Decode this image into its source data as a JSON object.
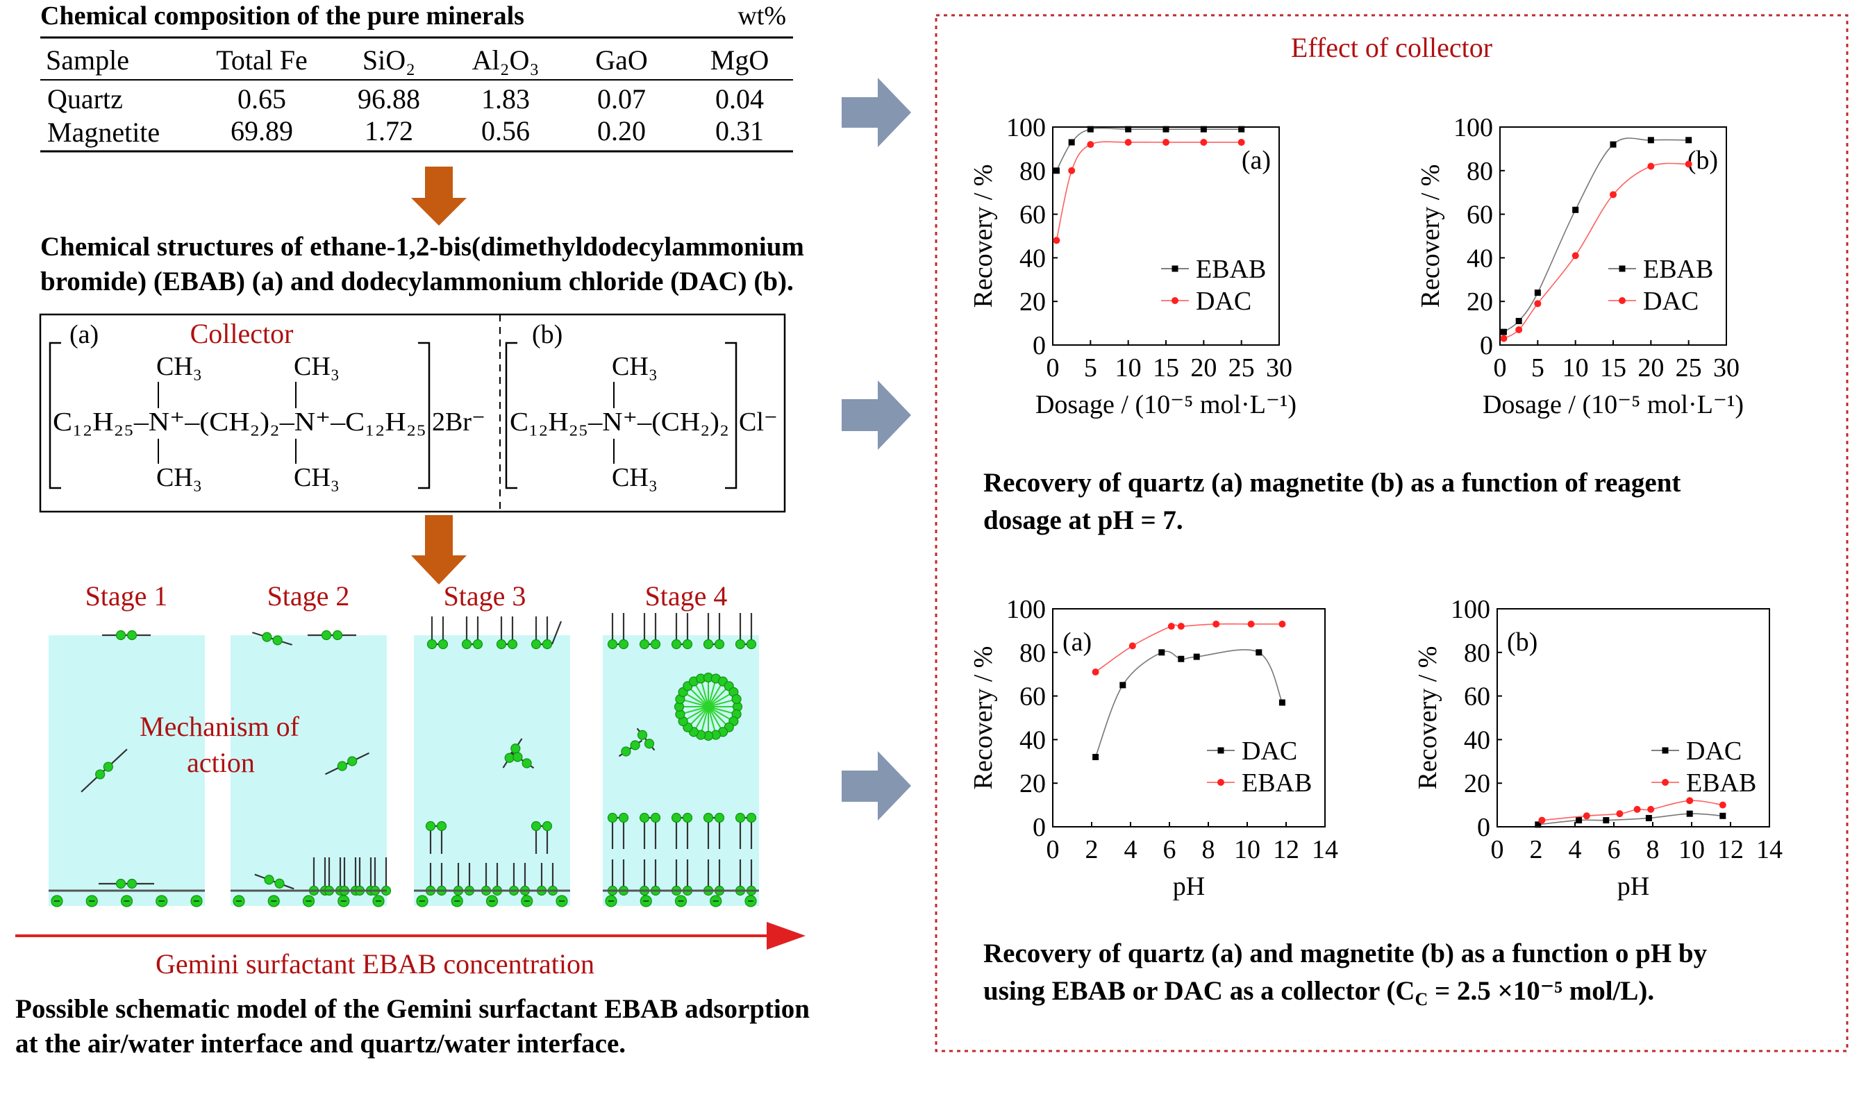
{
  "table": {
    "title": "Chemical composition of the pure minerals",
    "unit": "wt%",
    "headers": [
      "Sample",
      "Total Fe",
      "SiO₂",
      "Al₂O₃",
      "GaO",
      "MgO"
    ],
    "rows": [
      [
        "Quartz",
        "0.65",
        "96.88",
        "1.83",
        "0.07",
        "0.04"
      ],
      [
        "Magnetite",
        "69.89",
        "1.72",
        "0.56",
        "0.20",
        "0.31"
      ]
    ]
  },
  "structures": {
    "caption_line1": "Chemical structures of ethane-1,2-bis(dimethyldodecylammonium",
    "caption_line2": "bromide) (EBAB) (a) and dodecylammonium chloride (DAC) (b).",
    "collector_label": "Collector",
    "label_a": "(a)",
    "label_b": "(b)",
    "ch3": "CH₃",
    "ebab_formula": "C₁₂H₂₅–N⁺–(CH₂)₂–N⁺–C₁₂H₂₅",
    "ebab_counterion": "2Br⁻",
    "dac_formula": "C₁₂H₂₅–N⁺–(CH₂)₂",
    "dac_counterion": "Cl⁻"
  },
  "mechanism": {
    "stages": [
      "Stage 1",
      "Stage 2",
      "Stage 3",
      "Stage 4"
    ],
    "label_line1": "Mechanism of",
    "label_line2": "action",
    "arrow_label": "Gemini surfactant EBAB concentration",
    "caption_line1": "Possible schematic model of the Gemini surfactant EBAB adsorption",
    "caption_line2": "at the air/water interface and quartz/water interface."
  },
  "right_panel": {
    "title": "Effect of collector",
    "caption1_line1": "Recovery of quartz (a) magnetite (b) as a function of reagent",
    "caption1_line2": "dosage at pH = 7.",
    "caption2_line1": "Recovery of quartz (a) and magnetite (b) as a function o pH by",
    "caption2_line2": "using EBAB or DAC as a collector (C",
    "caption2_sub": "C",
    "caption2_rest": " = 2.5 ×10⁻⁵ mol/L)."
  },
  "colors": {
    "frame": "#c0282d",
    "arrow_orange": "#c55a11",
    "arrow_gray": "#8496b0",
    "water": "#ccf7f7",
    "dac_red": "#ff2020",
    "ebab_black": "#000000",
    "head_green": "#22cc22"
  },
  "chart_data": [
    {
      "type": "line",
      "panel": "(a)",
      "xlabel": "Dosage / (10⁻⁵ mol·L⁻¹)",
      "ylabel": "Recovery / %",
      "xlim": [
        0,
        30
      ],
      "ylim": [
        0,
        100
      ],
      "xticks": [
        0,
        5,
        10,
        15,
        20,
        25,
        30
      ],
      "yticks": [
        0,
        20,
        40,
        60,
        80,
        100
      ],
      "legend": "right",
      "series": [
        {
          "name": "EBAB",
          "color": "#000000",
          "x": [
            0.5,
            2.5,
            5,
            10,
            15,
            20,
            25
          ],
          "y": [
            80,
            93,
            99,
            99,
            99,
            99,
            99
          ]
        },
        {
          "name": "DAC",
          "color": "#ff2020",
          "x": [
            0.5,
            2.5,
            5,
            10,
            15,
            20,
            25
          ],
          "y": [
            48,
            80,
            92,
            93,
            93,
            93,
            93
          ]
        }
      ]
    },
    {
      "type": "line",
      "panel": "(b)",
      "xlabel": "Dosage / (10⁻⁵ mol·L⁻¹)",
      "ylabel": "Recovery / %",
      "xlim": [
        0,
        30
      ],
      "ylim": [
        0,
        100
      ],
      "xticks": [
        0,
        5,
        10,
        15,
        20,
        25,
        30
      ],
      "yticks": [
        0,
        20,
        40,
        60,
        80,
        100
      ],
      "legend": "right",
      "series": [
        {
          "name": "EBAB",
          "color": "#000000",
          "x": [
            0.5,
            2.5,
            5,
            10,
            15,
            20,
            25
          ],
          "y": [
            6,
            11,
            24,
            62,
            92,
            94,
            94
          ]
        },
        {
          "name": "DAC",
          "color": "#ff2020",
          "x": [
            0.5,
            2.5,
            5,
            10,
            15,
            20,
            25
          ],
          "y": [
            3,
            7,
            19,
            41,
            69,
            82,
            83
          ]
        }
      ]
    },
    {
      "type": "line",
      "panel": "(a)",
      "xlabel": "pH",
      "ylabel": "Recovery / %",
      "xlim": [
        0,
        14
      ],
      "ylim": [
        0,
        100
      ],
      "xticks": [
        0,
        2,
        4,
        6,
        8,
        10,
        12,
        14
      ],
      "yticks": [
        0,
        20,
        40,
        60,
        80,
        100
      ],
      "legend": "right",
      "series": [
        {
          "name": "DAC",
          "color": "#000000",
          "x": [
            2.2,
            3.6,
            5.6,
            6.6,
            7.4,
            10.6,
            11.8
          ],
          "y": [
            32,
            65,
            80,
            77,
            78,
            80,
            57
          ]
        },
        {
          "name": "EBAB",
          "color": "#ff2020",
          "x": [
            2.2,
            4.1,
            6.1,
            6.6,
            8.4,
            10.2,
            11.8
          ],
          "y": [
            71,
            83,
            92,
            92,
            93,
            93,
            93
          ]
        }
      ]
    },
    {
      "type": "line",
      "panel": "(b)",
      "xlabel": "pH",
      "ylabel": "Recovery / %",
      "xlim": [
        0,
        14
      ],
      "ylim": [
        0,
        100
      ],
      "xticks": [
        0,
        2,
        4,
        6,
        8,
        10,
        12,
        14
      ],
      "yticks": [
        0,
        20,
        40,
        60,
        80,
        100
      ],
      "legend": "right",
      "series": [
        {
          "name": "DAC",
          "color": "#000000",
          "x": [
            2.1,
            4.2,
            5.6,
            7.8,
            9.9,
            11.6
          ],
          "y": [
            1,
            3,
            3,
            4,
            6,
            5
          ]
        },
        {
          "name": "EBAB",
          "color": "#ff2020",
          "x": [
            2.3,
            4.6,
            6.3,
            7.2,
            7.9,
            9.9,
            11.6
          ],
          "y": [
            3,
            5,
            6,
            8,
            8,
            12,
            10
          ]
        }
      ]
    }
  ]
}
